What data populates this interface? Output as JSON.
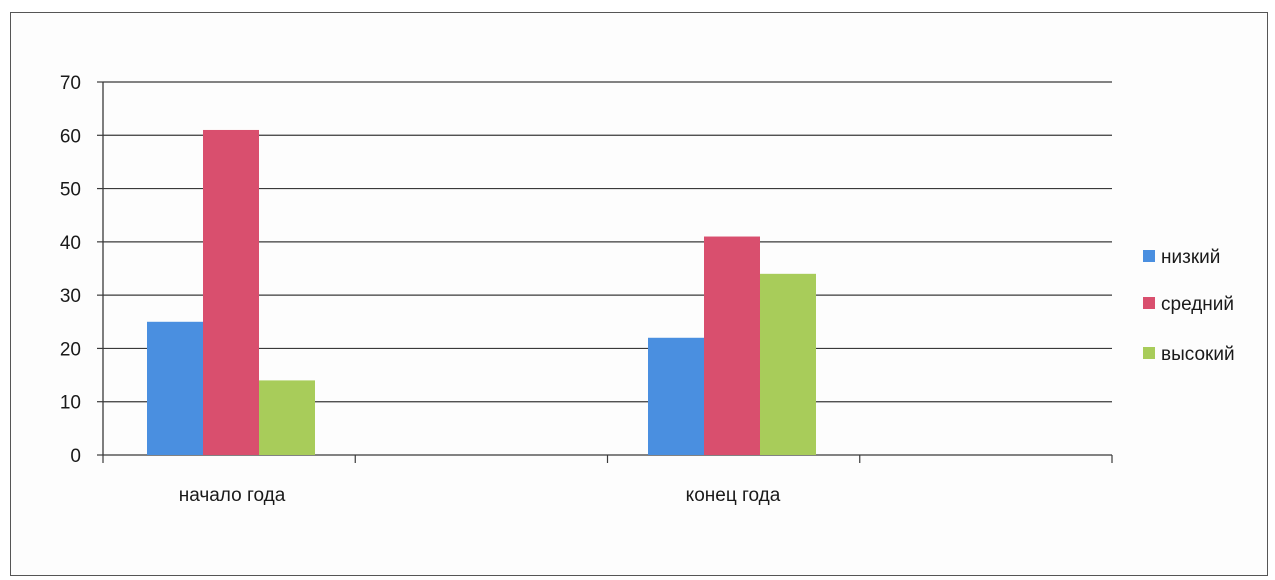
{
  "chart_data": {
    "type": "bar",
    "categories": [
      "начало года",
      "конец года"
    ],
    "series": [
      {
        "name": "низкий",
        "values": [
          25,
          22
        ],
        "color": "#4a8fe0"
      },
      {
        "name": "средний",
        "values": [
          61,
          41
        ],
        "color": "#d94f6e"
      },
      {
        "name": "высокий",
        "values": [
          14,
          34
        ],
        "color": "#a8cc5a"
      }
    ],
    "title": "",
    "xlabel": "",
    "ylabel": "",
    "ylim": [
      0,
      70
    ],
    "yticks": [
      0,
      10,
      20,
      30,
      40,
      50,
      60,
      70
    ],
    "grid": true,
    "legend_position": "right"
  }
}
